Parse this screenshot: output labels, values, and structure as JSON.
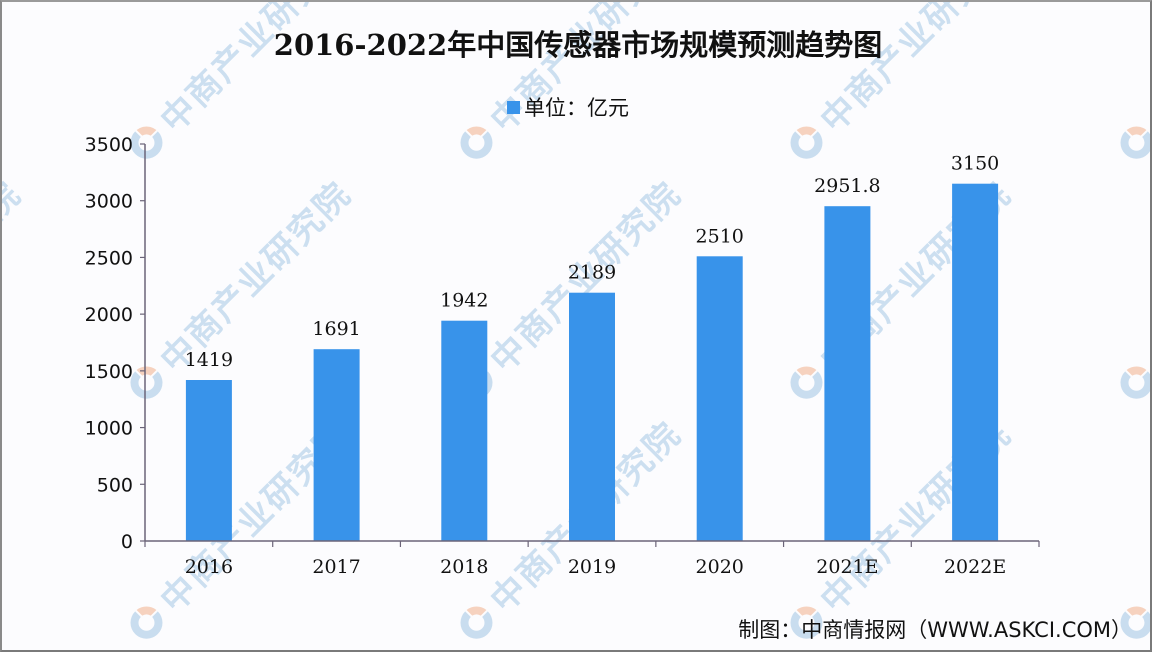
{
  "title": "2016-2022年中国传感器市场规模预测趋势图",
  "legend": {
    "label": "单位：亿元",
    "color": "#3893ea"
  },
  "footer": "制图：中商情报网（WWW.ASKCI.COM）",
  "watermark": {
    "text": "中商产业研究院",
    "logo": "askci-logo-icon"
  },
  "colors": {
    "bar": "#3893ea",
    "axis": "#6b6478",
    "text": "#111111",
    "watermark": "#c7dcef"
  },
  "chart_data": {
    "type": "bar",
    "title": "2016-2022年中国传感器市场规模预测趋势图",
    "categories": [
      "2016",
      "2017",
      "2018",
      "2019",
      "2020",
      "2021E",
      "2022E"
    ],
    "series": [
      {
        "name": "单位：亿元",
        "values": [
          1419,
          1691,
          1942,
          2189,
          2510,
          2951.8,
          3150
        ]
      }
    ],
    "data_labels": [
      "1419",
      "1691",
      "1942",
      "2189",
      "2510",
      "2951.8",
      "3150"
    ],
    "xlabel": "",
    "ylabel": "",
    "ylim": [
      0,
      3500
    ],
    "yticks": [
      0,
      500,
      1000,
      1500,
      2000,
      2500,
      3000,
      3500
    ],
    "grid": false,
    "legend_position": "top-center"
  }
}
